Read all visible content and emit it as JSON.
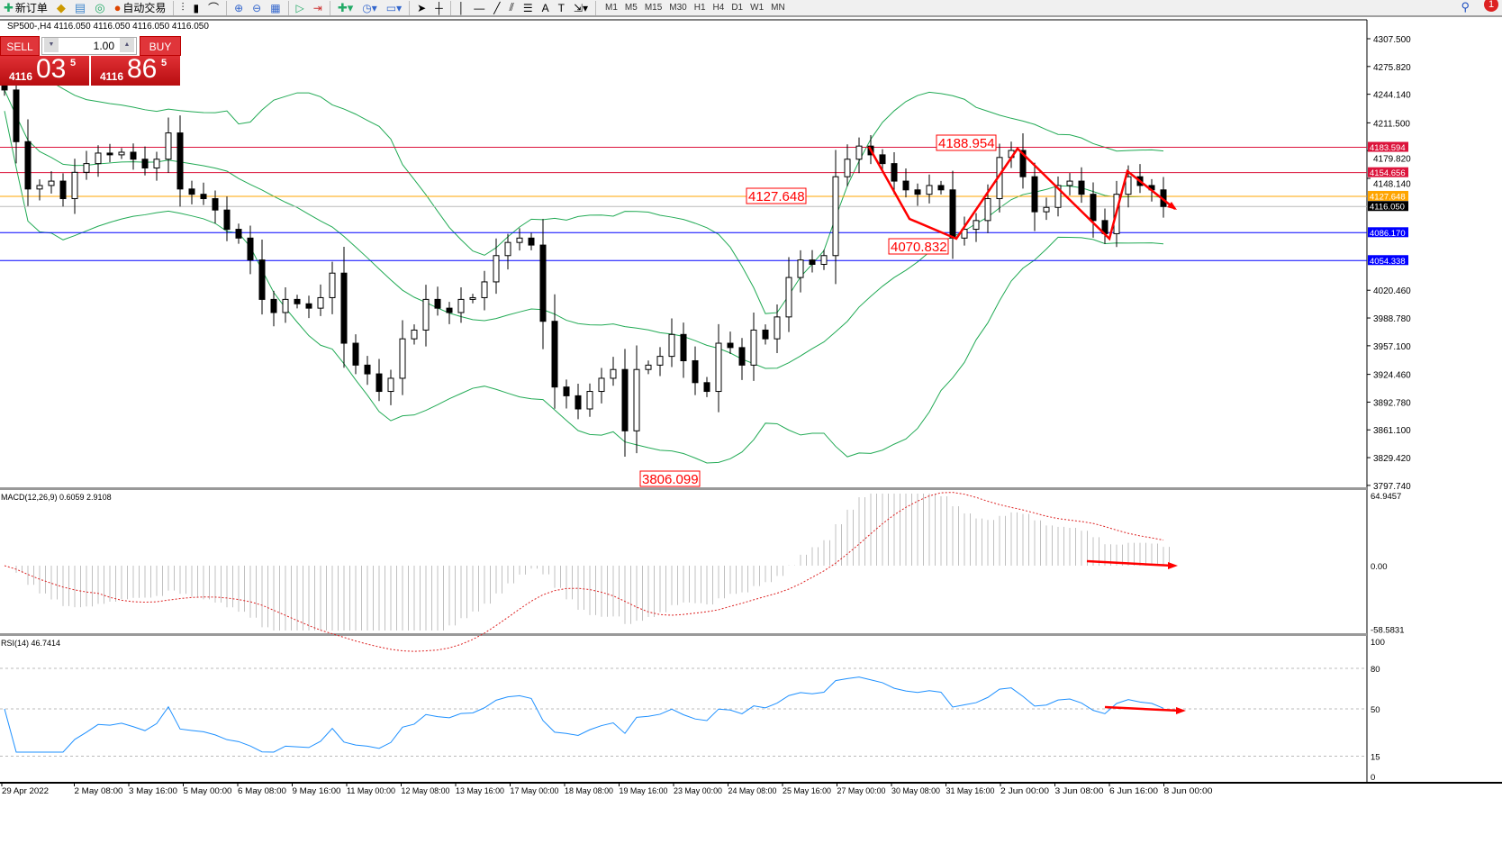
{
  "toolbar": {
    "new_order": "新订单",
    "auto_trading": "自动交易",
    "timeframes": [
      "M1",
      "M5",
      "M15",
      "M30",
      "H1",
      "H4",
      "D1",
      "W1",
      "MN"
    ],
    "notifications": "1"
  },
  "chart_header": "SP500-,H4  4116.050 4116.050 4116.050 4116.050",
  "trade_panel": {
    "sell": "SELL",
    "buy": "BUY",
    "lot": "1.00",
    "bid_big": "4116",
    "bid_main": "03",
    "bid_sup": "5",
    "ask_big": "4116",
    "ask_main": "86",
    "ask_sup": "5"
  },
  "colors": {
    "bull": "#ffffff",
    "bear": "#000000",
    "bands": "#22aa55",
    "macd_hist": "#c0c0c0",
    "macd_signal": "#dd2222",
    "rsi": "#1e90ff",
    "annot": "#ff0000"
  },
  "chart_data": [
    {
      "type": "candlestick",
      "symbol": "SP500-",
      "timeframe": "H4",
      "price_ticks": [
        "4307.500",
        "4275.820",
        "4244.140",
        "4211.500",
        "4179.820",
        "4148.140",
        "4020.460",
        "3988.780",
        "3957.100",
        "3924.460",
        "3892.780",
        "3861.100",
        "3829.420",
        "3797.740"
      ],
      "closes": [
        4249,
        4190,
        4136,
        4140,
        4145,
        4125,
        4155,
        4165,
        4177,
        4175,
        4178,
        4170,
        4160,
        4170,
        4200,
        4136,
        4130,
        4125,
        4112,
        4090,
        4080,
        4055,
        4010,
        3995,
        4010,
        4005,
        4000,
        4012,
        4040,
        3960,
        3935,
        3925,
        3905,
        3920,
        3965,
        3975,
        4010,
        4000,
        3995,
        4010,
        4012,
        4030,
        4060,
        4075,
        4080,
        4072,
        3985,
        3910,
        3900,
        3885,
        3905,
        3920,
        3930,
        3860,
        3930,
        3935,
        3945,
        3970,
        3940,
        3915,
        3905,
        3960,
        3955,
        3935,
        3975,
        3965,
        3990,
        4035,
        4055,
        4050,
        4060,
        4150,
        4170,
        4185,
        4175,
        4165,
        4145,
        4135,
        4130,
        4140,
        4135,
        4080,
        4090,
        4100,
        4125,
        4172,
        4180,
        4150,
        4110,
        4115,
        4140,
        4145,
        4130,
        4100,
        4085,
        4130,
        4150,
        4140,
        4135,
        4116
      ],
      "hlines": [
        {
          "price": "4183.594",
          "color": "#dc143c"
        },
        {
          "price": "4154.656",
          "color": "#dc143c"
        },
        {
          "price": "4127.648",
          "color": "#ffa500"
        },
        {
          "price": "4116.050",
          "color": "#000000"
        },
        {
          "price": "4086.170",
          "color": "#0000ff"
        },
        {
          "price": "4054.338",
          "color": "#0000ff"
        }
      ],
      "annotations": [
        "4188.954",
        "4127.648",
        "4070.832",
        "3806.099"
      ],
      "indicators": [
        "Bollinger Bands(20,2)"
      ],
      "time_labels": [
        "29 Apr 2022",
        "2 May 08:00",
        "3 May 16:00",
        "5 May 00:00",
        "6 May 08:00",
        "9 May 16:00",
        "11 May 00:00",
        "12 May 08:00",
        "13 May 16:00",
        "17 May 00:00",
        "18 May 08:00",
        "19 May 16:00",
        "23 May 00:00",
        "24 May 08:00",
        "25 May 16:00",
        "27 May 00:00",
        "30 May 08:00",
        "31 May 16:00",
        "2 Jun 00:00",
        "3 Jun 08:00",
        "6 Jun 16:00",
        "8 Jun 00:00"
      ]
    },
    {
      "type": "histogram+line",
      "label": "MACD(12,26,9) 0.6059 2.9108",
      "ticks": [
        "64.9457",
        "0.00",
        "-58.5831"
      ],
      "range": [
        -58.5831,
        64.9457
      ]
    },
    {
      "type": "line",
      "label": "RSI(14) 46.7414",
      "ticks": [
        "100",
        "80",
        "50",
        "15",
        "0"
      ],
      "range": [
        0,
        100
      ],
      "levels": [
        80,
        50,
        15
      ]
    }
  ]
}
